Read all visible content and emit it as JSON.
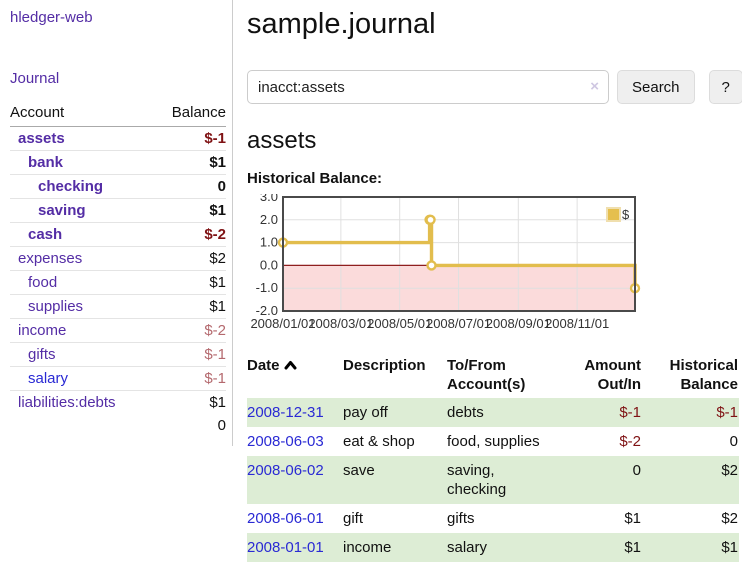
{
  "app": {
    "brand": "hledger-web"
  },
  "sidebar": {
    "journal_link": "Journal",
    "table": {
      "account_header": "Account",
      "balance_header": "Balance",
      "rows": [
        {
          "name": "assets",
          "balance": "$-1",
          "level": 1,
          "bold": true,
          "neg": "neg"
        },
        {
          "name": "bank",
          "balance": "$1",
          "level": 2,
          "bold": true,
          "neg": ""
        },
        {
          "name": "checking",
          "balance": "0",
          "level": 3,
          "bold": true,
          "neg": ""
        },
        {
          "name": "saving",
          "balance": "$1",
          "level": 3,
          "bold": true,
          "neg": ""
        },
        {
          "name": "cash",
          "balance": "$-2",
          "level": 2,
          "bold": true,
          "neg": "neg"
        },
        {
          "name": "expenses",
          "balance": "$2",
          "level": 1,
          "bold": false,
          "neg": ""
        },
        {
          "name": "food",
          "balance": "$1",
          "level": 2,
          "bold": false,
          "neg": ""
        },
        {
          "name": "supplies",
          "balance": "$1",
          "level": 2,
          "bold": false,
          "neg": ""
        },
        {
          "name": "income",
          "balance": "$-2",
          "level": 1,
          "bold": false,
          "neg": "negl"
        },
        {
          "name": "gifts",
          "balance": "$-1",
          "level": 2,
          "bold": false,
          "neg": "negl"
        },
        {
          "name": "salary",
          "balance": "$-1",
          "level": 2,
          "bold": false,
          "neg": "negl",
          "unvisited": true
        },
        {
          "name": "liabilities:debts",
          "balance": "$1",
          "level": 1,
          "bold": false,
          "neg": ""
        }
      ],
      "total": "0"
    }
  },
  "main": {
    "title": "sample.journal",
    "search": {
      "value": "inacct:assets",
      "clear_icon": "×",
      "button_label": "Search",
      "help_label": "?"
    },
    "account_heading": "assets",
    "chart_label": "Historical Balance:",
    "register": {
      "columns": [
        "Date",
        "Description",
        "To/From Account(s)",
        "Amount Out/In",
        "Historical Balance"
      ],
      "rows": [
        {
          "date": "2008-12-31",
          "description": "pay off",
          "accounts": "debts",
          "amount": "$-1",
          "balance": "$-1"
        },
        {
          "date": "2008-06-03",
          "description": "eat & shop",
          "accounts": "food, supplies",
          "amount": "$-2",
          "balance": "0"
        },
        {
          "date": "2008-06-02",
          "description": "save",
          "accounts": "saving, checking",
          "amount": "0",
          "balance": "$2"
        },
        {
          "date": "2008-06-01",
          "description": "gift",
          "accounts": "gifts",
          "amount": "$1",
          "balance": "$2"
        },
        {
          "date": "2008-01-01",
          "description": "income",
          "accounts": "salary",
          "amount": "$1",
          "balance": "$1"
        }
      ]
    }
  },
  "chart_data": {
    "type": "line",
    "step": true,
    "title": "Historical Balance",
    "legend": "$",
    "legend_position": "top-right",
    "grid": true,
    "series": [
      {
        "name": "$",
        "points": [
          [
            "2008-01-01",
            1
          ],
          [
            "2008-06-01",
            2
          ],
          [
            "2008-06-02",
            2
          ],
          [
            "2008-06-03",
            0
          ],
          [
            "2008-12-31",
            -1
          ]
        ]
      }
    ],
    "xlim": [
      "2008-01-01",
      "2008-12-31"
    ],
    "ylim": [
      -2,
      3
    ],
    "x_ticks": [
      "2008/01/01",
      "2008/03/01",
      "2008/05/01",
      "2008/07/01",
      "2008/09/01",
      "2008/11/01"
    ],
    "y_ticks": [
      3.0,
      2.0,
      1.0,
      0.0,
      -1.0,
      -2.0
    ],
    "colors": {
      "line": "#e2bd4d",
      "marker_fill": "#ffffff",
      "legend_box": "#e5bf4e",
      "legend_box_border": "#f0dfae",
      "negative_fill": "#fbdbdb",
      "zero_line": "#8f1f1f",
      "gridline": "#e0e0e0",
      "border": "#4a4a4a",
      "tick_text": "#333333"
    }
  }
}
